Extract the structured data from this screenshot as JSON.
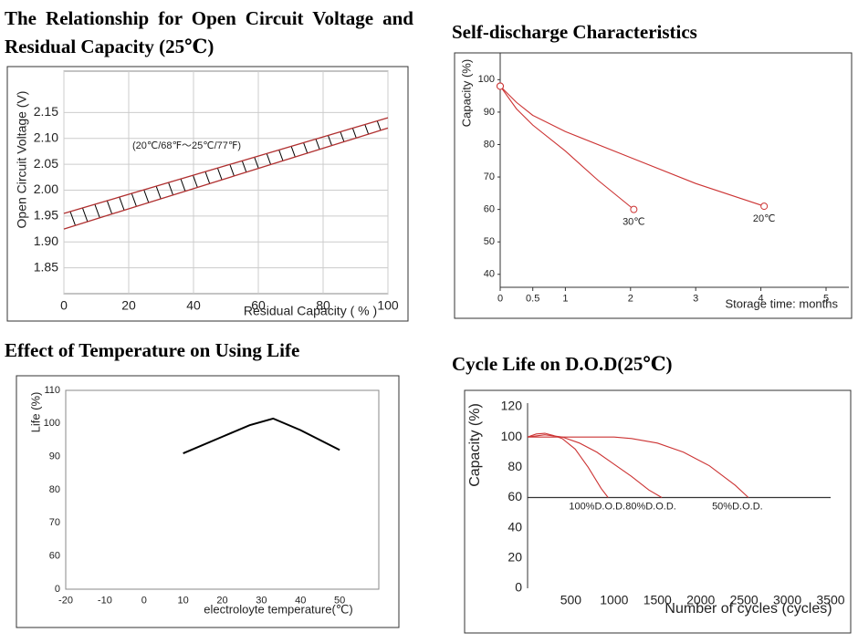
{
  "chart_data": [
    {
      "type": "band",
      "title": "The Relationship for Open Circuit Voltage and Residual Capacity (25℃)",
      "annotation": "(20℃/68℉～25℃/77℉)",
      "x_label": "Residual Capacity ( % )",
      "y_label": "Open Circuit Voltage (V)",
      "x": [
        0,
        100
      ],
      "series": [
        {
          "color": "#b03030",
          "values": [
            1.925,
            2.12
          ]
        },
        {
          "color": "#b03030",
          "values": [
            1.955,
            2.14
          ]
        }
      ],
      "hatch": "#000000",
      "xlim": [
        0,
        100
      ],
      "xticks": [
        0,
        20,
        40,
        60,
        80,
        100
      ],
      "ylim": [
        1.8,
        2.23
      ],
      "yticks": [
        1.85,
        {
          "value": 1.9,
          "label": "1.90"
        },
        1.95,
        {
          "value": 2,
          "label": "2.00"
        },
        2.05,
        {
          "value": 2.1,
          "label": "2.10"
        },
        2.15
      ],
      "grid": true
    },
    {
      "type": "line",
      "title": "Self-discharge Characteristics",
      "x_label": "Storage time: months",
      "y_label": "Capacity (%)",
      "series": [
        {
          "name": "30℃",
          "color": "#cc3333",
          "x": [
            0,
            0.25,
            0.5,
            1,
            1.5,
            2.05
          ],
          "values": [
            98,
            91,
            86,
            78,
            69,
            60
          ]
        },
        {
          "name": "20℃",
          "color": "#cc3333",
          "x": [
            0,
            0.25,
            0.5,
            1,
            2,
            3,
            4.05
          ],
          "values": [
            98,
            93,
            89,
            84,
            76,
            68,
            61
          ]
        }
      ],
      "markers": "open-circle",
      "xlim": [
        0,
        5
      ],
      "xticks": [
        0,
        0.5,
        1,
        2,
        3,
        4,
        5
      ],
      "ylim": [
        36,
        106
      ],
      "yticks": [
        40,
        50,
        60,
        70,
        80,
        90,
        100
      ],
      "grid": false
    },
    {
      "type": "line",
      "title": "Effect of Temperature on Using Life",
      "x_label": "electroloyte temperature(℃)",
      "y_label": "Life (%)",
      "x": [
        10,
        20,
        27,
        33,
        40,
        50
      ],
      "values": [
        91,
        96,
        99.5,
        101.5,
        98,
        92
      ],
      "color": "#000000",
      "xlim": [
        -20,
        60
      ],
      "xticks": [
        -20,
        -10,
        0,
        10,
        20,
        30,
        40,
        50
      ],
      "ylim": [
        0,
        110
      ],
      "yticks": [
        0,
        60,
        70,
        80,
        90,
        100,
        110
      ],
      "axis_break": true,
      "grid": false
    },
    {
      "type": "line",
      "title": "Cycle Life on D.O.D(25℃)",
      "x_label": "Number of cycles (cycles)",
      "y_label": "Capacity (%)",
      "series": [
        {
          "name": "100%D.O.D.",
          "color": "#cc3333",
          "x": [
            0,
            100,
            200,
            300,
            400,
            550,
            700,
            850,
            930
          ],
          "values": [
            100,
            102,
            102.5,
            101,
            99,
            92,
            80,
            66,
            60
          ]
        },
        {
          "name": "80%D.O.D.",
          "color": "#cc3333",
          "x": [
            0,
            200,
            400,
            600,
            800,
            1000,
            1200,
            1400,
            1550
          ],
          "values": [
            100,
            101.5,
            100,
            96,
            90,
            82,
            74,
            65,
            60
          ]
        },
        {
          "name": "50%D.O.D.",
          "color": "#cc3333",
          "x": [
            0,
            500,
            1000,
            1200,
            1500,
            1800,
            2100,
            2400,
            2550
          ],
          "values": [
            100,
            100,
            100,
            99,
            96,
            90,
            81,
            68,
            60
          ]
        }
      ],
      "hline": 60,
      "xlim": [
        0,
        3500
      ],
      "xticks": [
        500,
        1000,
        1500,
        2000,
        2500,
        3000,
        3500
      ],
      "ylim": [
        0,
        120
      ],
      "yticks": [
        0,
        20,
        40,
        60,
        80,
        100,
        120
      ],
      "grid": false
    }
  ]
}
